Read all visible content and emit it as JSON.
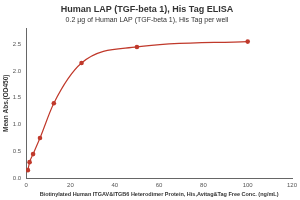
{
  "chart_data": {
    "type": "scatter",
    "title": "Human LAP (TGF-beta 1), His Tag ELISA",
    "subtitle": "0.2 µg of Human LAP (TGF-beta 1), His Tag per well",
    "x_label": "Biotinylated Human ITGAV&ITGB6 Heterodimer Protein, His,Avitag&Tag Free Conc. (ng/mL)",
    "y_label": "Mean Abs.(OD450)",
    "x": [
      0.78,
      1.56,
      3.13,
      6.25,
      12.5,
      25,
      50,
      100
    ],
    "values": [
      0.15,
      0.3,
      0.45,
      0.75,
      1.4,
      2.15,
      2.45,
      2.55
    ],
    "color": "#c0392b",
    "marker": "circle",
    "line_style": "solid",
    "xlim": [
      0,
      120
    ],
    "xticks": [
      0,
      20,
      40,
      60,
      80,
      100,
      120
    ],
    "ylim": [
      0,
      2.8
    ],
    "yticks": [
      {
        "value": 0,
        "label": "0.0"
      },
      {
        "value": 0.5,
        "label": "0.5"
      },
      {
        "value": 1,
        "label": "1.0"
      },
      {
        "value": 1.5,
        "label": "1.5"
      },
      {
        "value": 2,
        "label": "2.0"
      },
      {
        "value": 2.5,
        "label": "2.5"
      }
    ],
    "grid": false
  }
}
